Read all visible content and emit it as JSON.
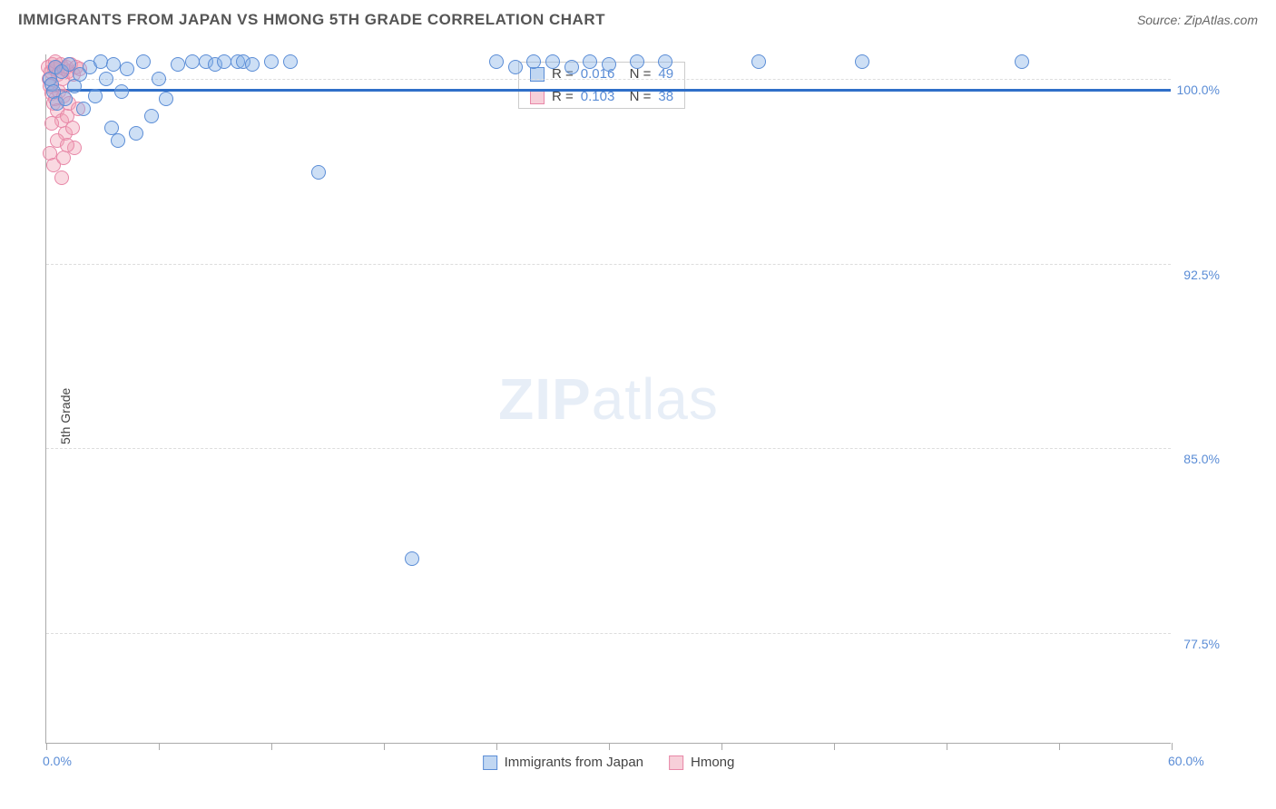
{
  "header": {
    "title": "IMMIGRANTS FROM JAPAN VS HMONG 5TH GRADE CORRELATION CHART",
    "source": "Source: ZipAtlas.com"
  },
  "chart": {
    "type": "scatter",
    "y_axis_label": "5th Grade",
    "x_min": 0.0,
    "x_max": 60.0,
    "y_min": 73.0,
    "y_max": 101.0,
    "x_labels": [
      {
        "val": 0.0,
        "text": "0.0%"
      },
      {
        "val": 60.0,
        "text": "60.0%"
      }
    ],
    "y_labels": [
      {
        "val": 100.0,
        "text": "100.0%"
      },
      {
        "val": 92.5,
        "text": "92.5%"
      },
      {
        "val": 85.0,
        "text": "85.0%"
      },
      {
        "val": 77.5,
        "text": "77.5%"
      }
    ],
    "grid_y": [
      100.0,
      92.5,
      85.0,
      77.5
    ],
    "x_ticks": [
      0,
      6,
      12,
      18,
      24,
      30,
      36,
      42,
      48,
      54,
      60
    ],
    "series_blue": {
      "name": "Immigrants from Japan",
      "color_fill": "rgba(131,175,229,0.4)",
      "color_stroke": "#5b8dd6",
      "r": "0.016",
      "n": "49",
      "trend": {
        "y": 99.6,
        "slope": 0.002
      },
      "points": [
        {
          "x": 0.2,
          "y": 100.0
        },
        {
          "x": 0.3,
          "y": 99.8
        },
        {
          "x": 0.4,
          "y": 99.5
        },
        {
          "x": 0.5,
          "y": 100.5
        },
        {
          "x": 0.6,
          "y": 99.0
        },
        {
          "x": 0.8,
          "y": 100.3
        },
        {
          "x": 1.0,
          "y": 99.2
        },
        {
          "x": 1.2,
          "y": 100.6
        },
        {
          "x": 1.5,
          "y": 99.7
        },
        {
          "x": 1.8,
          "y": 100.2
        },
        {
          "x": 2.0,
          "y": 98.8
        },
        {
          "x": 2.3,
          "y": 100.5
        },
        {
          "x": 2.6,
          "y": 99.3
        },
        {
          "x": 2.9,
          "y": 100.7
        },
        {
          "x": 3.2,
          "y": 100.0
        },
        {
          "x": 3.5,
          "y": 98.0
        },
        {
          "x": 3.6,
          "y": 100.6
        },
        {
          "x": 4.0,
          "y": 99.5
        },
        {
          "x": 4.3,
          "y": 100.4
        },
        {
          "x": 4.8,
          "y": 97.8
        },
        {
          "x": 5.2,
          "y": 100.7
        },
        {
          "x": 5.6,
          "y": 98.5
        },
        {
          "x": 6.0,
          "y": 100.0
        },
        {
          "x": 6.4,
          "y": 99.2
        },
        {
          "x": 7.0,
          "y": 100.6
        },
        {
          "x": 7.8,
          "y": 100.7
        },
        {
          "x": 8.5,
          "y": 100.7
        },
        {
          "x": 9.0,
          "y": 100.6
        },
        {
          "x": 9.5,
          "y": 100.7
        },
        {
          "x": 10.2,
          "y": 100.7
        },
        {
          "x": 10.5,
          "y": 100.7
        },
        {
          "x": 11.0,
          "y": 100.6
        },
        {
          "x": 12.0,
          "y": 100.7
        },
        {
          "x": 13.0,
          "y": 100.7
        },
        {
          "x": 14.5,
          "y": 96.2
        },
        {
          "x": 19.5,
          "y": 80.5
        },
        {
          "x": 24.0,
          "y": 100.7
        },
        {
          "x": 25.0,
          "y": 100.5
        },
        {
          "x": 26.0,
          "y": 100.7
        },
        {
          "x": 27.0,
          "y": 100.7
        },
        {
          "x": 28.0,
          "y": 100.5
        },
        {
          "x": 29.0,
          "y": 100.7
        },
        {
          "x": 30.0,
          "y": 100.6
        },
        {
          "x": 31.5,
          "y": 100.7
        },
        {
          "x": 33.0,
          "y": 100.7
        },
        {
          "x": 38.0,
          "y": 100.7
        },
        {
          "x": 43.5,
          "y": 100.7
        },
        {
          "x": 52.0,
          "y": 100.7
        },
        {
          "x": 3.8,
          "y": 97.5
        }
      ]
    },
    "series_pink": {
      "name": "Hmong",
      "color_fill": "rgba(240,160,180,0.4)",
      "color_stroke": "#e888a8",
      "r": "0.103",
      "n": "38",
      "points": [
        {
          "x": 0.1,
          "y": 100.5
        },
        {
          "x": 0.15,
          "y": 100.0
        },
        {
          "x": 0.2,
          "y": 99.7
        },
        {
          "x": 0.25,
          "y": 100.3
        },
        {
          "x": 0.3,
          "y": 99.4
        },
        {
          "x": 0.35,
          "y": 100.6
        },
        {
          "x": 0.4,
          "y": 99.0
        },
        {
          "x": 0.45,
          "y": 100.4
        },
        {
          "x": 0.5,
          "y": 99.2
        },
        {
          "x": 0.55,
          "y": 100.5
        },
        {
          "x": 0.6,
          "y": 98.7
        },
        {
          "x": 0.65,
          "y": 100.2
        },
        {
          "x": 0.7,
          "y": 99.5
        },
        {
          "x": 0.75,
          "y": 100.6
        },
        {
          "x": 0.8,
          "y": 98.3
        },
        {
          "x": 0.85,
          "y": 100.0
        },
        {
          "x": 0.9,
          "y": 99.3
        },
        {
          "x": 0.95,
          "y": 100.4
        },
        {
          "x": 1.0,
          "y": 97.8
        },
        {
          "x": 1.05,
          "y": 100.5
        },
        {
          "x": 1.1,
          "y": 98.5
        },
        {
          "x": 1.15,
          "y": 100.3
        },
        {
          "x": 1.2,
          "y": 99.0
        },
        {
          "x": 1.3,
          "y": 100.6
        },
        {
          "x": 1.4,
          "y": 98.0
        },
        {
          "x": 1.45,
          "y": 100.2
        },
        {
          "x": 1.5,
          "y": 97.2
        },
        {
          "x": 1.6,
          "y": 100.5
        },
        {
          "x": 1.7,
          "y": 98.8
        },
        {
          "x": 1.8,
          "y": 100.4
        },
        {
          "x": 0.2,
          "y": 97.0
        },
        {
          "x": 0.4,
          "y": 96.5
        },
        {
          "x": 0.6,
          "y": 97.5
        },
        {
          "x": 0.9,
          "y": 96.8
        },
        {
          "x": 1.1,
          "y": 97.3
        },
        {
          "x": 0.3,
          "y": 98.2
        },
        {
          "x": 0.5,
          "y": 100.7
        },
        {
          "x": 0.8,
          "y": 96.0
        }
      ]
    },
    "watermark": "ZIPatlas",
    "bot_legend": [
      {
        "name": "Immigrants from Japan",
        "swatch": "blue"
      },
      {
        "name": "Hmong",
        "swatch": "pink"
      }
    ]
  }
}
